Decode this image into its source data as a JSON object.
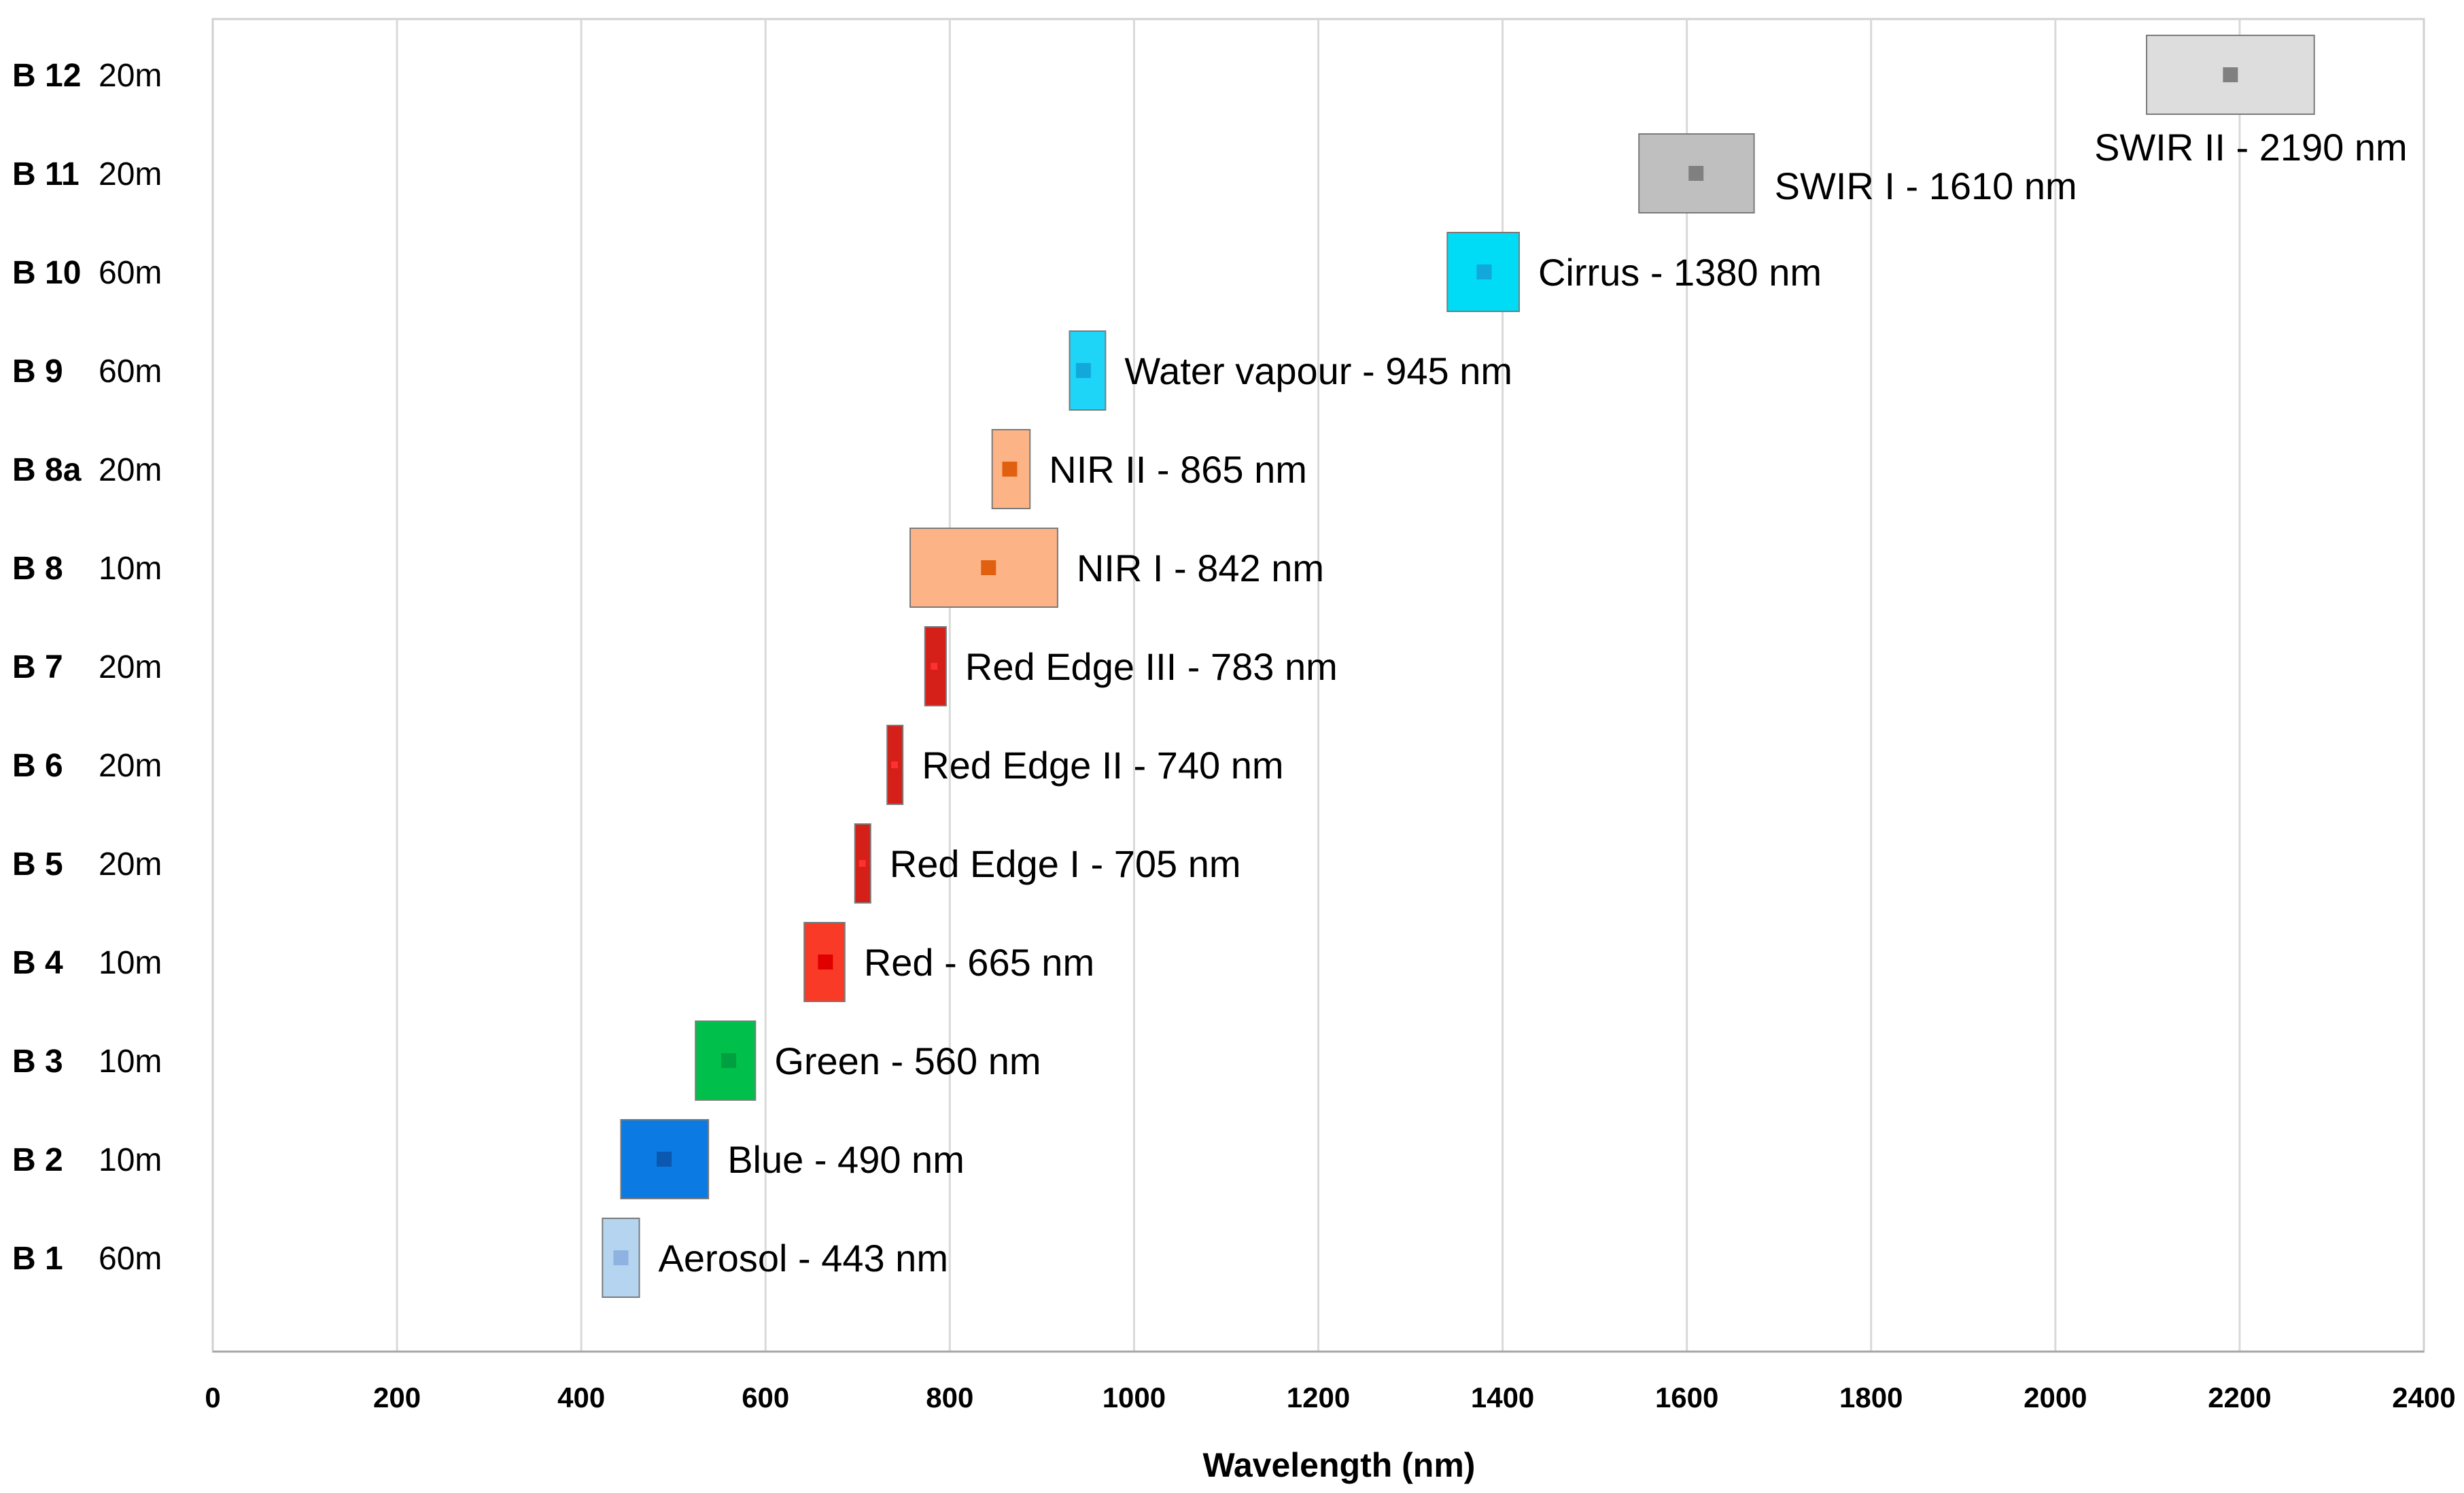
{
  "chart_data": {
    "type": "range-bar",
    "title": "",
    "xlabel": "Wavelength (nm)",
    "ylabel": "",
    "xlim": [
      0,
      2400
    ],
    "xticks": [
      "0",
      "200",
      "400",
      "600",
      "800",
      "1000",
      "1200",
      "1400",
      "1600",
      "1800",
      "2000",
      "2200",
      "2400"
    ],
    "grid": "vertical",
    "bands": [
      {
        "code": "B 1",
        "resolution": "60m",
        "label": "Aerosol - 443 nm",
        "center": 443,
        "min": 423,
        "max": 463,
        "fill": "#b4d4f0",
        "marker": "#8fb3e0"
      },
      {
        "code": "B 2",
        "resolution": "10m",
        "label": "Blue - 490 nm",
        "center": 490,
        "min": 443,
        "max": 538,
        "fill": "#0b7be3",
        "marker": "#0a58b0"
      },
      {
        "code": "B 3",
        "resolution": "10m",
        "label": "Green - 560 nm",
        "center": 560,
        "min": 524,
        "max": 589,
        "fill": "#00c04b",
        "marker": "#00a040"
      },
      {
        "code": "B 4",
        "resolution": "10m",
        "label": "Red - 665 nm",
        "center": 665,
        "min": 642,
        "max": 686,
        "fill": "#f83a26",
        "marker": "#e00000"
      },
      {
        "code": "B 5",
        "resolution": "20m",
        "label": "Red Edge I - 705 nm",
        "center": 705,
        "min": 697,
        "max": 714,
        "fill": "#d42018",
        "marker": "#ff3030"
      },
      {
        "code": "B 6",
        "resolution": "20m",
        "label": "Red Edge II - 740 nm",
        "center": 740,
        "min": 732,
        "max": 749,
        "fill": "#d42018",
        "marker": "#ff3030"
      },
      {
        "code": "B 7",
        "resolution": "20m",
        "label": "Red Edge III - 783 nm",
        "center": 783,
        "min": 773,
        "max": 796,
        "fill": "#d42018",
        "marker": "#ff3030"
      },
      {
        "code": "B 8",
        "resolution": "10m",
        "label": "NIR I - 842 nm",
        "center": 842,
        "min": 757,
        "max": 917,
        "fill": "#fcb487",
        "marker": "#e06010"
      },
      {
        "code": "B 8a",
        "resolution": "20m",
        "label": "NIR II - 865 nm",
        "center": 865,
        "min": 846,
        "max": 887,
        "fill": "#fcb487",
        "marker": "#e06010"
      },
      {
        "code": "B 9",
        "resolution": "60m",
        "label": "Water vapour - 945 nm",
        "center": 945,
        "min": 930,
        "max": 969,
        "fill": "#1ed4f7",
        "marker": "#12a8dc"
      },
      {
        "code": "B 10",
        "resolution": "60m",
        "label": "Cirrus - 1380 nm",
        "center": 1380,
        "min": 1340,
        "max": 1418,
        "fill": "#00dcf5",
        "marker": "#12a8dc"
      },
      {
        "code": "B 11",
        "resolution": "20m",
        "label": "SWIR I - 1610 nm",
        "center": 1610,
        "min": 1548,
        "max": 1673,
        "fill": "#bfbfbf",
        "marker": "#808080"
      },
      {
        "code": "B 12",
        "resolution": "20m",
        "label": "SWIR II - 2190 nm",
        "center": 2190,
        "min": 2099,
        "max": 2281,
        "fill": "#dddddd",
        "marker": "#808080"
      }
    ]
  }
}
